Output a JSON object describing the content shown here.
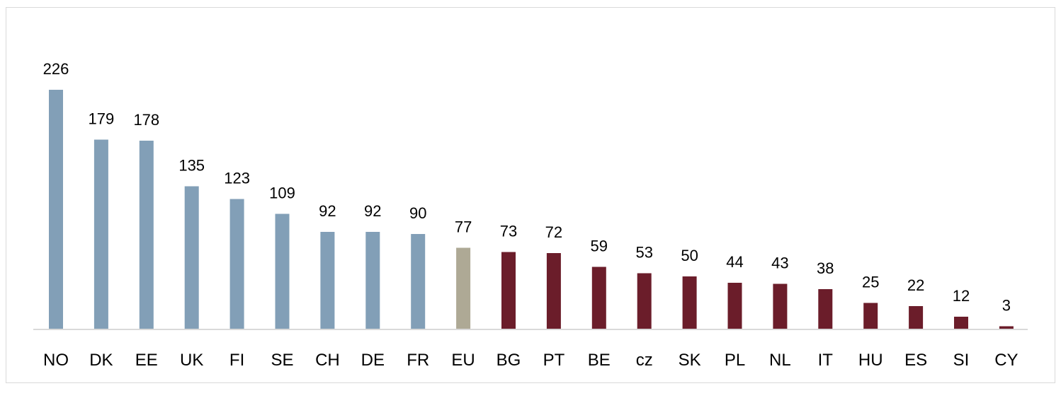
{
  "chart_data": {
    "type": "bar",
    "title": "",
    "xlabel": "",
    "ylabel": "",
    "ylim": [
      0,
      226
    ],
    "grid": false,
    "legend": "none",
    "categories": [
      "NO",
      "DK",
      "EE",
      "UK",
      "FI",
      "SE",
      "CH",
      "DE",
      "FR",
      "EU",
      "BG",
      "PT",
      "BE",
      "cz",
      "SK",
      "PL",
      "NL",
      "IT",
      "HU",
      "ES",
      "SI",
      "CY"
    ],
    "values": [
      226,
      179,
      178,
      135,
      123,
      109,
      92,
      92,
      90,
      77,
      73,
      72,
      59,
      53,
      50,
      44,
      43,
      38,
      25,
      22,
      12,
      3
    ],
    "bar_colors": [
      "#829fb7",
      "#829fb7",
      "#829fb7",
      "#829fb7",
      "#829fb7",
      "#829fb7",
      "#829fb7",
      "#829fb7",
      "#829fb7",
      "#aea995",
      "#6b1d2a",
      "#6b1d2a",
      "#6b1d2a",
      "#6b1d2a",
      "#6b1d2a",
      "#6b1d2a",
      "#6b1d2a",
      "#6b1d2a",
      "#6b1d2a",
      "#6b1d2a",
      "#6b1d2a",
      "#6b1d2a"
    ]
  }
}
